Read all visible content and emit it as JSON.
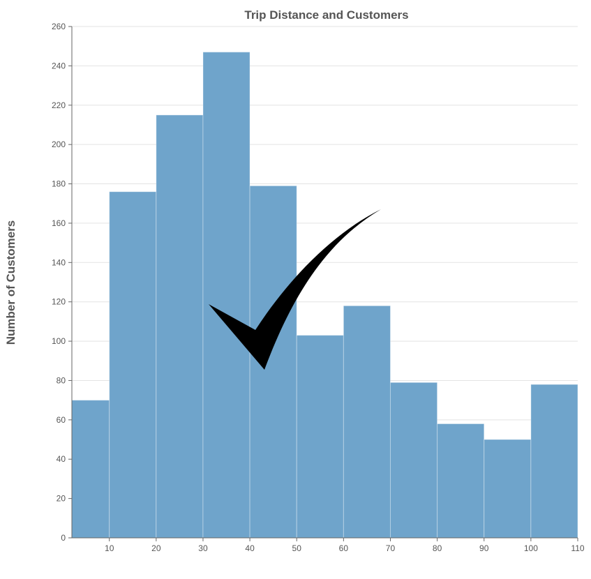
{
  "chart_data": {
    "type": "bar",
    "title": "Trip Distance and Customers",
    "xlabel": "",
    "ylabel": "Number of Customers",
    "bins": [
      {
        "x0": 2,
        "x1": 10,
        "value": 70
      },
      {
        "x0": 10,
        "x1": 20,
        "value": 176
      },
      {
        "x0": 20,
        "x1": 30,
        "value": 215
      },
      {
        "x0": 30,
        "x1": 40,
        "value": 247
      },
      {
        "x0": 40,
        "x1": 50,
        "value": 179
      },
      {
        "x0": 50,
        "x1": 60,
        "value": 103
      },
      {
        "x0": 60,
        "x1": 70,
        "value": 118
      },
      {
        "x0": 70,
        "x1": 80,
        "value": 79
      },
      {
        "x0": 80,
        "x1": 90,
        "value": 58
      },
      {
        "x0": 90,
        "x1": 100,
        "value": 50
      },
      {
        "x0": 100,
        "x1": 110,
        "value": 78
      }
    ],
    "xlim": [
      2,
      110
    ],
    "ylim": [
      0,
      260
    ],
    "xticks": [
      10,
      20,
      30,
      40,
      50,
      60,
      70,
      80,
      90,
      100,
      110
    ],
    "yticks": [
      0,
      20,
      40,
      60,
      80,
      100,
      120,
      140,
      160,
      180,
      200,
      220,
      240,
      260
    ],
    "grid": true,
    "bar_color": "#6fa4cb",
    "overlay_icon": "checkmark-icon",
    "overlay_color": "#000000"
  }
}
